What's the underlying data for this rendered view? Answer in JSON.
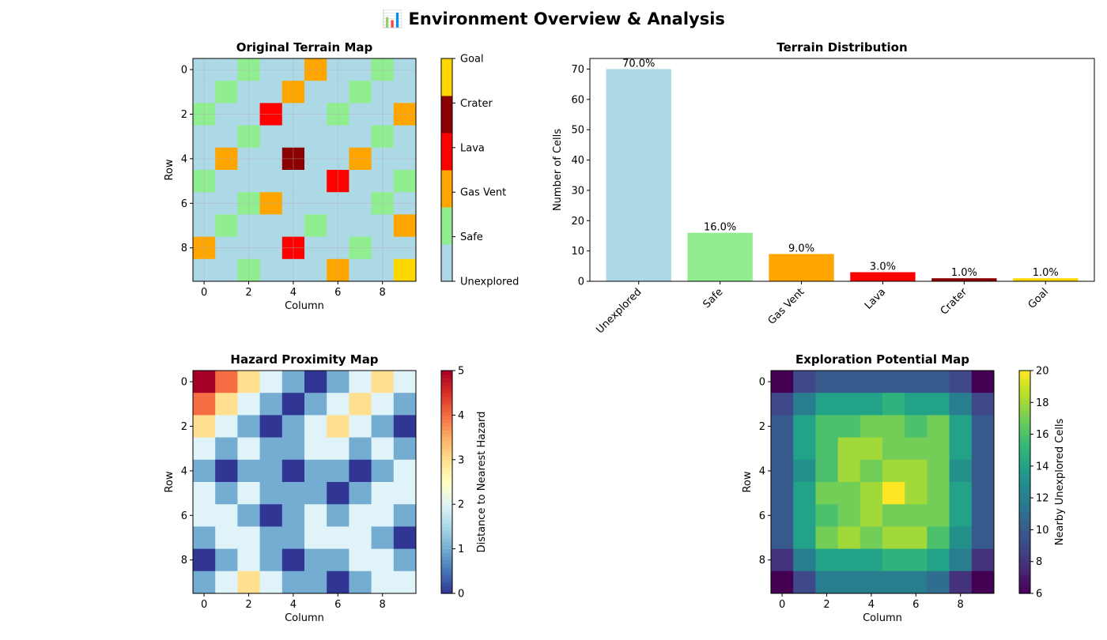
{
  "figure": {
    "title": "📊 Environment Overview & Analysis"
  },
  "colors": {
    "terrain": [
      "#add8e6",
      "#90ee90",
      "#ffa500",
      "#ff0000",
      "#8b0000",
      "#ffd700"
    ],
    "grid": "#b0b0b0"
  },
  "chart_data": [
    {
      "type": "heatmap",
      "title": "Original Terrain Map",
      "xlabel": "Column",
      "ylabel": "Row",
      "xticks": [
        "0",
        "2",
        "4",
        "6",
        "8"
      ],
      "yticks": [
        "0",
        "2",
        "4",
        "6",
        "8"
      ],
      "grid": true,
      "colorbar": {
        "labels": [
          "Unexplored",
          "Safe",
          "Gas Vent",
          "Lava",
          "Crater",
          "Goal"
        ]
      },
      "matrix": [
        [
          0,
          0,
          1,
          0,
          0,
          2,
          0,
          0,
          1,
          0
        ],
        [
          0,
          1,
          0,
          0,
          2,
          0,
          0,
          1,
          0,
          0
        ],
        [
          1,
          0,
          0,
          3,
          0,
          0,
          1,
          0,
          0,
          2
        ],
        [
          0,
          0,
          1,
          0,
          0,
          0,
          0,
          0,
          1,
          0
        ],
        [
          0,
          2,
          0,
          0,
          4,
          0,
          0,
          2,
          0,
          0
        ],
        [
          1,
          0,
          0,
          0,
          0,
          0,
          3,
          0,
          0,
          1
        ],
        [
          0,
          0,
          1,
          2,
          0,
          0,
          0,
          0,
          1,
          0
        ],
        [
          0,
          1,
          0,
          0,
          0,
          1,
          0,
          0,
          0,
          2
        ],
        [
          2,
          0,
          0,
          0,
          3,
          0,
          0,
          1,
          0,
          0
        ],
        [
          0,
          0,
          1,
          0,
          0,
          0,
          2,
          0,
          0,
          5
        ]
      ]
    },
    {
      "type": "bar",
      "title": "Terrain Distribution",
      "xlabel": "",
      "ylabel": "Number of Cells",
      "categories": [
        "Unexplored",
        "Safe",
        "Gas Vent",
        "Lava",
        "Crater",
        "Goal"
      ],
      "values": [
        70,
        16,
        9,
        3,
        1,
        1
      ],
      "data_labels": [
        "70.0%",
        "16.0%",
        "9.0%",
        "3.0%",
        "1.0%",
        "1.0%"
      ],
      "ylim": [
        0,
        73.5
      ],
      "yticks": [
        "0",
        "10",
        "20",
        "30",
        "40",
        "50",
        "60",
        "70"
      ],
      "grid": false
    },
    {
      "type": "heatmap",
      "title": "Hazard Proximity Map",
      "xlabel": "Column",
      "ylabel": "Row",
      "xticks": [
        "0",
        "2",
        "4",
        "6",
        "8"
      ],
      "yticks": [
        "0",
        "2",
        "4",
        "6",
        "8"
      ],
      "colormap": "RdYlBu_r",
      "colorbar": {
        "label": "Distance to Nearest Hazard",
        "range": [
          0,
          5
        ],
        "ticks": [
          "0",
          "1",
          "2",
          "3",
          "4",
          "5"
        ]
      },
      "matrix": [
        [
          5,
          4,
          3,
          2,
          1,
          0,
          1,
          2,
          3,
          2
        ],
        [
          4,
          3,
          2,
          1,
          0,
          1,
          2,
          3,
          2,
          1
        ],
        [
          3,
          2,
          1,
          0,
          1,
          2,
          3,
          2,
          1,
          0
        ],
        [
          2,
          1,
          2,
          1,
          1,
          2,
          2,
          1,
          2,
          1
        ],
        [
          1,
          0,
          1,
          1,
          0,
          1,
          1,
          0,
          1,
          2
        ],
        [
          2,
          1,
          2,
          1,
          1,
          1,
          0,
          1,
          2,
          2
        ],
        [
          2,
          2,
          1,
          0,
          1,
          2,
          1,
          2,
          2,
          1
        ],
        [
          1,
          2,
          2,
          1,
          1,
          2,
          2,
          2,
          1,
          0
        ],
        [
          0,
          1,
          2,
          1,
          0,
          1,
          1,
          2,
          2,
          1
        ],
        [
          1,
          2,
          3,
          2,
          1,
          1,
          0,
          1,
          2,
          2
        ]
      ]
    },
    {
      "type": "heatmap",
      "title": "Exploration Potential Map",
      "xlabel": "Column",
      "ylabel": "Row",
      "xticks": [
        "0",
        "2",
        "4",
        "6",
        "8"
      ],
      "yticks": [
        "0",
        "2",
        "4",
        "6",
        "8"
      ],
      "colormap": "viridis",
      "colorbar": {
        "label": "Nearby Unexplored Cells",
        "range": [
          6,
          20
        ],
        "ticks": [
          "6",
          "8",
          "10",
          "12",
          "14",
          "16",
          "18",
          "20"
        ]
      },
      "matrix": [
        [
          6,
          9,
          10,
          10,
          10,
          10,
          10,
          10,
          9,
          6
        ],
        [
          9,
          12,
          14,
          14,
          14,
          15,
          14,
          14,
          12,
          9
        ],
        [
          10,
          14,
          16,
          16,
          17,
          17,
          16,
          17,
          14,
          10
        ],
        [
          10,
          14,
          16,
          18,
          18,
          17,
          17,
          17,
          14,
          10
        ],
        [
          10,
          13,
          16,
          18,
          17,
          18,
          18,
          17,
          13,
          10
        ],
        [
          10,
          14,
          17,
          17,
          18,
          20,
          18,
          17,
          14,
          10
        ],
        [
          10,
          14,
          16,
          17,
          18,
          17,
          17,
          17,
          14,
          10
        ],
        [
          10,
          14,
          17,
          18,
          17,
          18,
          18,
          16,
          13,
          10
        ],
        [
          8,
          12,
          14,
          14,
          14,
          15,
          15,
          14,
          12,
          8
        ],
        [
          6,
          9,
          12,
          12,
          12,
          12,
          12,
          11,
          8,
          6
        ]
      ]
    }
  ]
}
